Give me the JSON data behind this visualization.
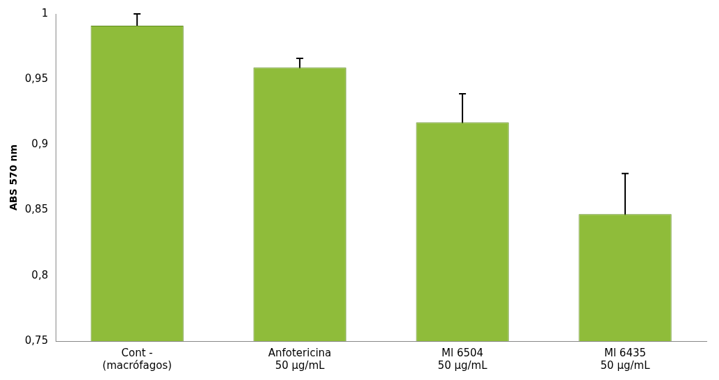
{
  "chart_data": {
    "type": "bar",
    "ylabel": "ABS 570 nm",
    "categories": [
      "Cont -\n(macrófagos)",
      "Anfotericina\n50 µg/mL",
      "Ml 6504\n50 µg/mL",
      "Ml 6435\n50 µg/mL"
    ],
    "values": [
      0.991,
      0.959,
      0.917,
      0.847
    ],
    "errors": [
      0.009,
      0.007,
      0.022,
      0.031
    ],
    "color": "#8fbc3a",
    "ylim": [
      0.75,
      1
    ],
    "yticks": [
      {
        "value": 0.75,
        "label": "0,75"
      },
      {
        "value": 0.8,
        "label": "0,8"
      },
      {
        "value": 0.85,
        "label": "0,85"
      },
      {
        "value": 0.9,
        "label": "0,9"
      },
      {
        "value": 0.95,
        "label": "0,95"
      },
      {
        "value": 1,
        "label": "1"
      }
    ],
    "grid": false,
    "legend": false
  }
}
